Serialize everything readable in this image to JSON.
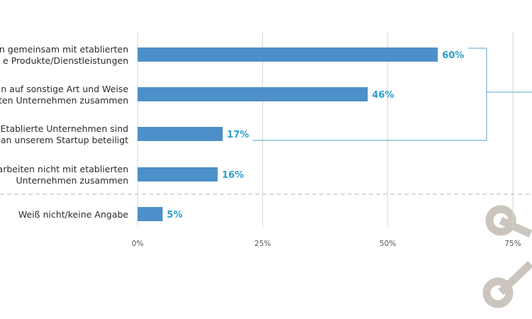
{
  "chart_data": {
    "type": "bar",
    "orientation": "horizontal",
    "categories": [
      [
        "n gemeinsam mit etablierten",
        "e Produkte/Dienstleistungen"
      ],
      [
        "n auf sonstige Art und Weise",
        "ten Unternehmen zusammen"
      ],
      [
        "Etablierte Unternehmen sind",
        "an unserem Startup beteiligt"
      ],
      [
        "arbeiten nicht mit etablierten",
        "Unternehmen zusammen"
      ],
      [
        "Weiß nicht/keine Angabe"
      ]
    ],
    "values": [
      60,
      46,
      17,
      16,
      5
    ],
    "value_labels": [
      "60%",
      "46%",
      "17%",
      "16%",
      "5%"
    ],
    "xlim": [
      0,
      75
    ],
    "ticks": [
      0,
      25,
      50,
      75
    ],
    "tick_labels": [
      "0%",
      "25%",
      "50%",
      "75%"
    ],
    "grid": true,
    "colors": {
      "bar": "#4d8fc8",
      "value_label": "#2a9ec9",
      "grid": "#d8d8c8",
      "bracket": "#5aa0d0",
      "divider": "#b5b5b5",
      "decoration": "#cbc5bd"
    }
  }
}
